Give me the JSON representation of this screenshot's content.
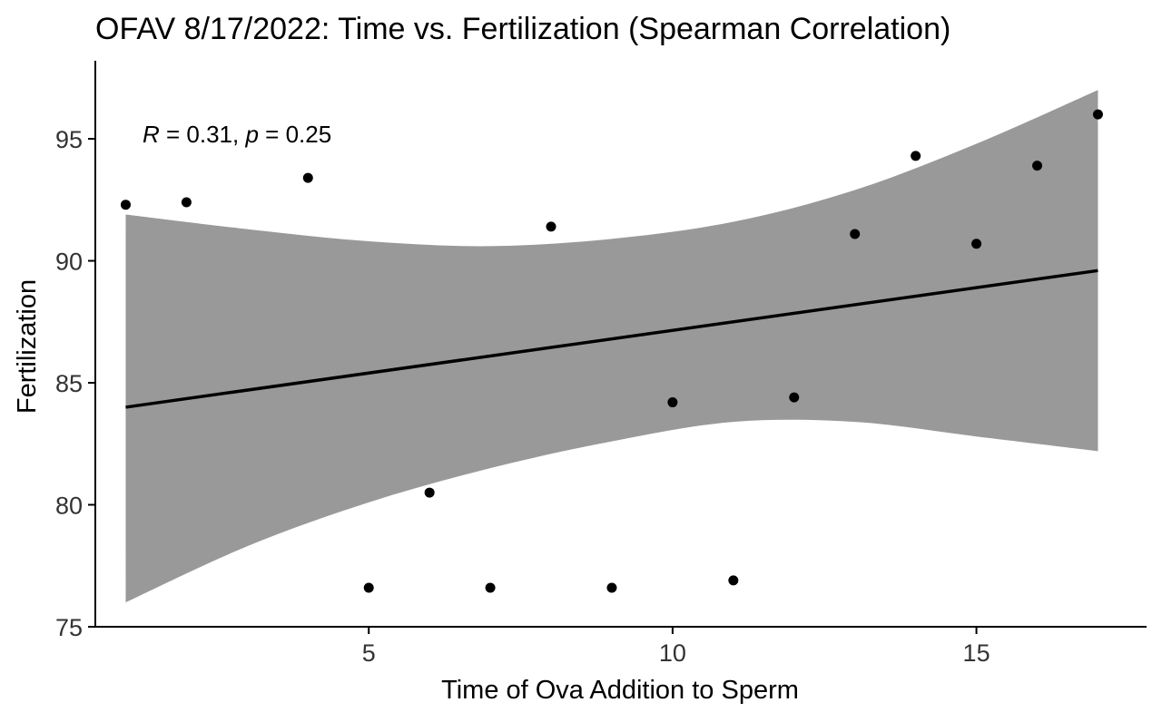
{
  "chart_data": {
    "type": "scatter",
    "title": "OFAV 8/17/2022: Time vs. Fertilization (Spearman Correlation)",
    "xlabel": "Time of Ova Addition to Sperm",
    "ylabel": "Fertilization",
    "xlim": [
      0.5,
      17.8
    ],
    "ylim": [
      75,
      98.2
    ],
    "x_ticks": [
      5,
      10,
      15
    ],
    "y_ticks": [
      75,
      80,
      85,
      90,
      95
    ],
    "grid": false,
    "legend": "none",
    "annotation": {
      "r_symbol": "R",
      "r_text": " = 0.31, ",
      "p_symbol": "p",
      "p_text": " = 0.25",
      "x": 1,
      "y": 95
    },
    "points": [
      {
        "x": 1,
        "y": 92.3
      },
      {
        "x": 2,
        "y": 92.4
      },
      {
        "x": 4,
        "y": 93.4
      },
      {
        "x": 5,
        "y": 76.6
      },
      {
        "x": 6,
        "y": 80.5
      },
      {
        "x": 7,
        "y": 76.6
      },
      {
        "x": 8,
        "y": 91.4
      },
      {
        "x": 9,
        "y": 76.6
      },
      {
        "x": 10,
        "y": 84.2
      },
      {
        "x": 11,
        "y": 76.9
      },
      {
        "x": 12,
        "y": 84.4
      },
      {
        "x": 13,
        "y": 91.1
      },
      {
        "x": 14,
        "y": 94.3
      },
      {
        "x": 15,
        "y": 90.7
      },
      {
        "x": 16,
        "y": 93.9
      },
      {
        "x": 17,
        "y": 96.0
      }
    ],
    "fit_line": {
      "x": [
        1,
        17
      ],
      "y": [
        84.0,
        89.6
      ]
    },
    "confidence_band": {
      "x": [
        1,
        3,
        5,
        7,
        9,
        11,
        13,
        15,
        17
      ],
      "upper": [
        91.9,
        91.3,
        90.8,
        90.6,
        90.9,
        91.6,
        92.9,
        94.8,
        97.0
      ],
      "lower": [
        76.0,
        78.3,
        80.1,
        81.5,
        82.6,
        83.4,
        83.4,
        82.8,
        82.2
      ]
    },
    "colors": {
      "points": "#000000",
      "fit_line": "#000000",
      "band": "#999999",
      "axis": "#000000",
      "text": "#000000"
    }
  }
}
